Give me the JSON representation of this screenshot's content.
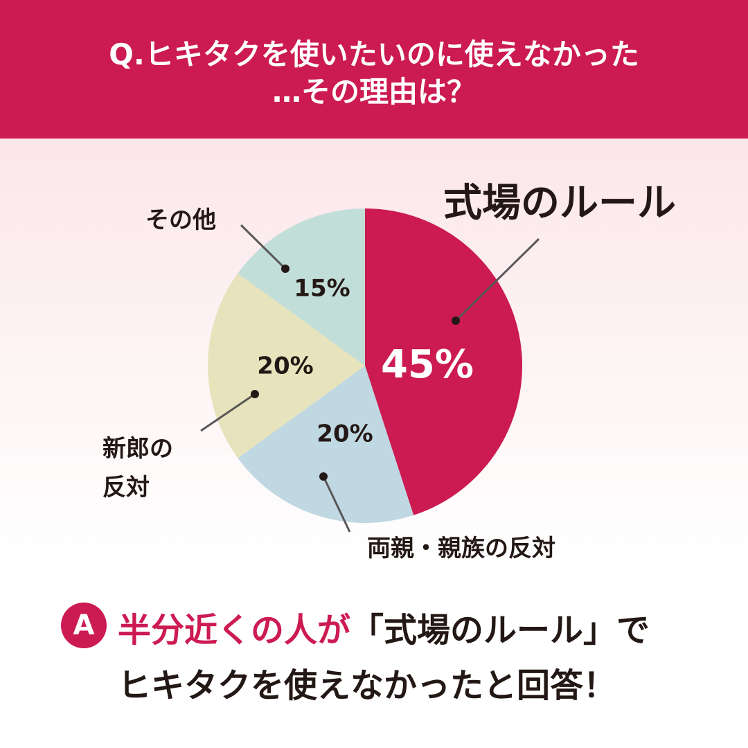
{
  "chart_data": {
    "type": "pie",
    "title": [
      "Q.ヒキタクを使いたいのに使えなかった",
      "…その理由は？"
    ],
    "categories": [
      "式場のルール",
      "両親・親族の反対",
      "新郎の\n反対",
      "その他"
    ],
    "values": [
      45,
      20,
      20,
      15
    ],
    "value_labels": [
      "45%",
      "20%",
      "20%",
      "15%"
    ],
    "colors": [
      "#cc1a52",
      "#c0d8e2",
      "#e6e3bd",
      "#c2ded8"
    ],
    "answer": {
      "marker": "A",
      "lines": [
        [
          "半分近くの人が",
          "「式場のルール」で"
        ],
        [
          "ヒキタクを使えなかったと回答！"
        ]
      ]
    }
  }
}
